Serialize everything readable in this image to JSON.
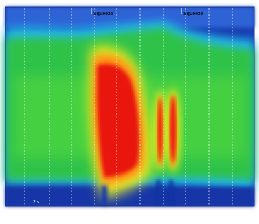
{
  "chart_data": {
    "type": "heatmap",
    "title": "",
    "xlabel": "",
    "ylabel": "",
    "grid": true,
    "colorscale": [
      "#0f2f9c",
      "#2a6fe0",
      "#1fc4e8",
      "#1fbf4a",
      "#3fdc3a",
      "#e8f020",
      "#ff8a12",
      "#e8140c"
    ],
    "events": [
      {
        "label": "Squeeze"
      },
      {
        "label": "Squeeze"
      }
    ],
    "time_label": "2 s"
  }
}
